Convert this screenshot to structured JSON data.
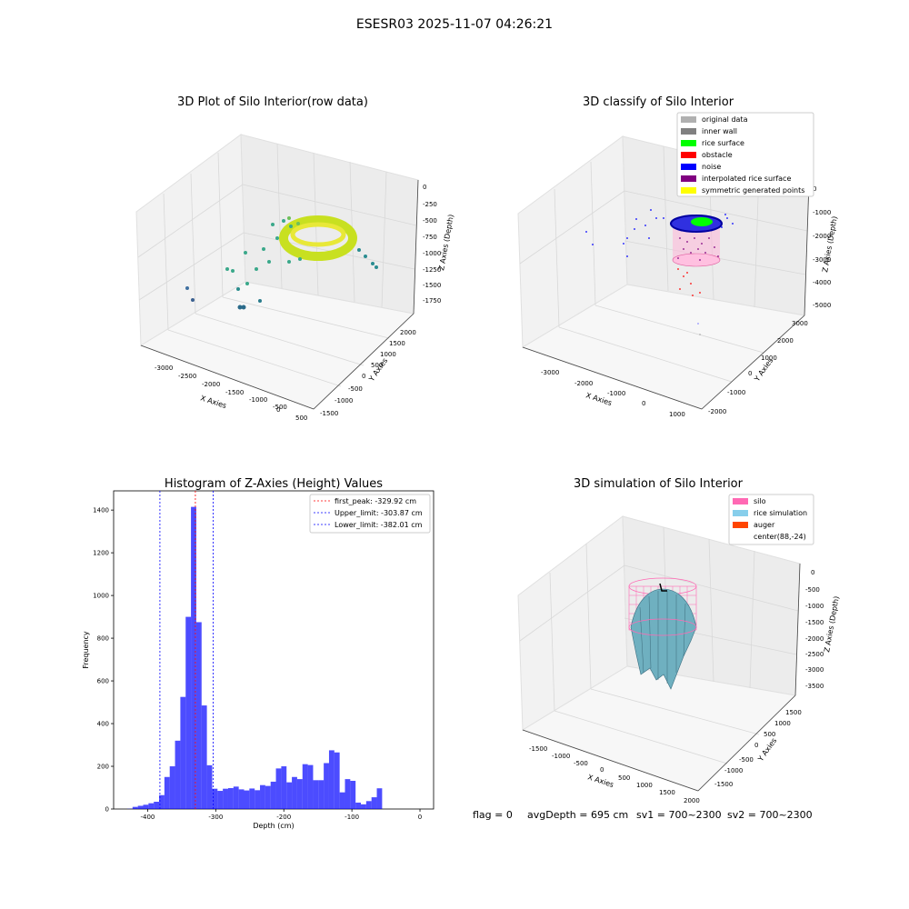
{
  "figure_title": "ESESR03 2025-11-07 04:26:21",
  "status_line": {
    "flag": "flag = 0",
    "avg_depth": "avgDepth = 695 cm",
    "sv1": "sv1 = 700~2300",
    "sv2": "sv2 = 700~2300"
  },
  "chart_data": [
    {
      "type": "scatter",
      "projection": "3d",
      "title": "3D Plot of Silo Interior(row data)",
      "xlabel": "X Axies",
      "ylabel": "Y Axies",
      "zlabel": "Z Axies (Depth)",
      "x_ticks": [
        "-3000",
        "-2500",
        "-2000",
        "-1500",
        "-1000",
        "-500",
        "0",
        "500"
      ],
      "y_ticks": [
        "-1500",
        "-1000",
        "-500",
        "0",
        "500",
        "1000",
        "1500",
        "2000"
      ],
      "z_ticks": [
        "0",
        "-250",
        "-500",
        "-750",
        "-1000",
        "-1250",
        "-1500",
        "-1750"
      ],
      "colormap": "viridis"
    },
    {
      "type": "scatter",
      "projection": "3d",
      "title": "3D classify of Silo Interior",
      "xlabel": "X Axies",
      "ylabel": "Y Axies",
      "zlabel": "Z Axies (Depth)",
      "x_ticks": [
        "-3000",
        "-2000",
        "-1000",
        "0",
        "1000"
      ],
      "y_ticks": [
        "-2000",
        "-1000",
        "0",
        "1000",
        "2000",
        "3000"
      ],
      "z_ticks": [
        "0",
        "-1000",
        "-2000",
        "-3000",
        "-4000",
        "-5000"
      ],
      "legend_position": "top-right",
      "legend": [
        {
          "label": "original data",
          "color": "#b0b0b0"
        },
        {
          "label": "inner wall",
          "color": "#808080"
        },
        {
          "label": "rice surface",
          "color": "#00ff00"
        },
        {
          "label": "obstacle",
          "color": "#ff0000"
        },
        {
          "label": "noise",
          "color": "#0000ff"
        },
        {
          "label": "interpolated rice surface",
          "color": "#800080"
        },
        {
          "label": "symmetric generated points",
          "color": "#ffff00"
        }
      ]
    },
    {
      "type": "bar",
      "title": "Histogram of Z-Axies (Height) Values",
      "xlabel": "Depth (cm)",
      "ylabel": "Frequency",
      "xlim": [
        -450,
        20
      ],
      "ylim": [
        0,
        1490
      ],
      "x_ticks": [
        -400,
        -300,
        -200,
        -100,
        0
      ],
      "y_ticks": [
        0,
        200,
        400,
        600,
        800,
        1000,
        1200,
        1400
      ],
      "bar_color": "#0000ff",
      "bin_start": -430,
      "bin_width": 7.8,
      "values": [
        1,
        10,
        15,
        20,
        27,
        34,
        65,
        150,
        200,
        320,
        525,
        900,
        1415,
        875,
        485,
        205,
        95,
        85,
        95,
        98,
        105,
        92,
        87,
        96,
        88,
        112,
        108,
        128,
        190,
        200,
        125,
        150,
        140,
        210,
        206,
        135,
        135,
        215,
        275,
        265,
        78,
        140,
        132,
        30,
        22,
        37,
        55,
        97
      ],
      "lines": [
        {
          "label": "first_peak: -329.92 cm",
          "value": -329.92,
          "color": "#ff0000"
        },
        {
          "label": "Upper_limit: -303.87 cm",
          "value": -303.87,
          "color": "#0000ff"
        },
        {
          "label": "Lower_limit: -382.01 cm",
          "value": -382.01,
          "color": "#0000ff"
        }
      ],
      "legend_position": "top-right"
    },
    {
      "type": "area",
      "projection": "3d",
      "title": "3D simulation of Silo Interior",
      "xlabel": "X Axies",
      "ylabel": "Y Axies",
      "zlabel": "Z Axies (Depth)",
      "x_ticks": [
        "-1500",
        "-1000",
        "-500",
        "0",
        "500",
        "1000",
        "1500",
        "2000"
      ],
      "y_ticks": [
        "-1500",
        "-1000",
        "-500",
        "0",
        "500",
        "1000",
        "1500"
      ],
      "z_ticks": [
        "0",
        "-500",
        "-1000",
        "-1500",
        "-2000",
        "-2500",
        "-3000",
        "-3500"
      ],
      "legend_position": "top-right",
      "legend": [
        {
          "label": "silo",
          "color": "#ff69b4"
        },
        {
          "label": "rice simulation",
          "color": "#87ceeb"
        },
        {
          "label": "auger",
          "color": "#ff4500"
        },
        {
          "label": "center(88,-24)",
          "color": "none"
        }
      ]
    }
  ]
}
